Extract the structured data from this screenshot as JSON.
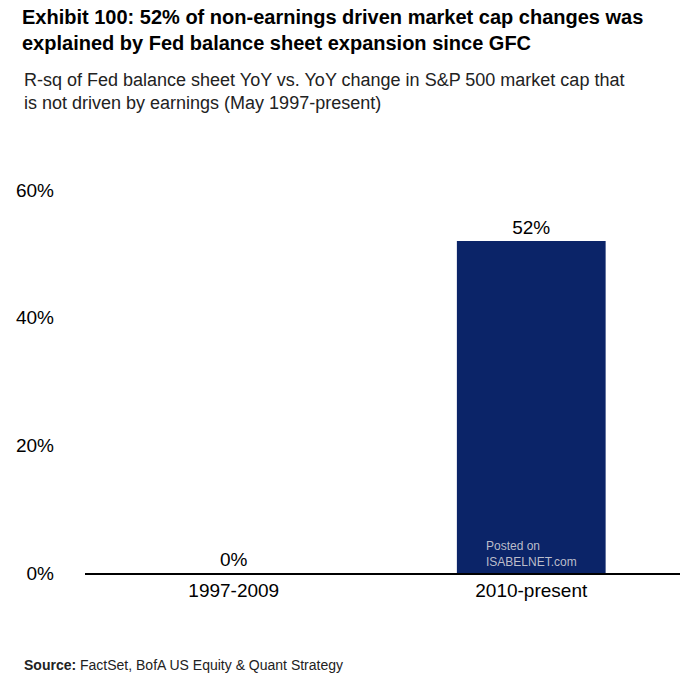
{
  "chart_data": {
    "type": "bar",
    "title": "Exhibit 100: 52% of non-earnings driven market cap changes was\nexplained by Fed balance sheet expansion since GFC",
    "subtitle": "R-sq of Fed balance sheet YoY vs. YoY change in S&P 500 market cap that\nis not driven by earnings (May 1997-present)",
    "categories": [
      "1997-2009",
      "2010-present"
    ],
    "values": [
      0,
      52
    ],
    "value_labels": [
      "0%",
      "52%"
    ],
    "data_labels": true,
    "color": "#0b2468",
    "ylim": [
      0,
      60
    ],
    "yticks": [
      {
        "value": 0,
        "label": "0%"
      },
      {
        "value": 20,
        "label": "20%"
      },
      {
        "value": 40,
        "label": "40%"
      },
      {
        "value": 60,
        "label": "60%"
      }
    ],
    "grid": false,
    "source_label": "Source:",
    "source": "FactSet, BofA US Equity & Quant Strategy",
    "watermark": "Posted on\nISABELNET.com"
  }
}
